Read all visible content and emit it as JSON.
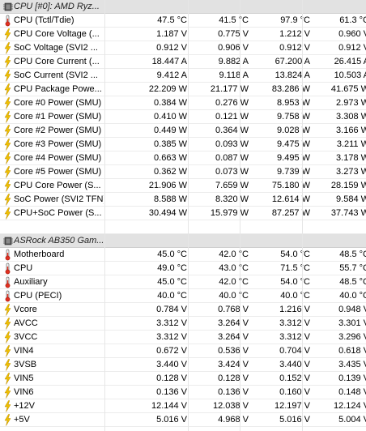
{
  "groups": [
    {
      "title": "CPU [#0]: AMD Ryz...",
      "icon": "chip-icon",
      "rows": [
        {
          "label": "CPU (Tctl/Tdie)",
          "icon": "thermometer-icon",
          "values": [
            "47.5 °C",
            "41.5 °C",
            "97.9 °C",
            "61.3 °C"
          ]
        },
        {
          "label": "CPU Core Voltage (...",
          "icon": "bolt-icon",
          "values": [
            "1.187 V",
            "0.775 V",
            "1.212 V",
            "0.960 V"
          ]
        },
        {
          "label": "SoC Voltage (SVI2 ...",
          "icon": "bolt-icon",
          "values": [
            "0.912 V",
            "0.906 V",
            "0.912 V",
            "0.912 V"
          ]
        },
        {
          "label": "CPU Core Current (...",
          "icon": "bolt-icon",
          "values": [
            "18.447 A",
            "9.882 A",
            "67.200 A",
            "26.415 A"
          ]
        },
        {
          "label": "SoC Current (SVI2 ...",
          "icon": "bolt-icon",
          "values": [
            "9.412 A",
            "9.118 A",
            "13.824 A",
            "10.503 A"
          ]
        },
        {
          "label": "CPU Package Powe...",
          "icon": "bolt-icon",
          "values": [
            "22.209 W",
            "21.177 W",
            "83.286 W",
            "41.675 W"
          ]
        },
        {
          "label": "Core #0 Power (SMU)",
          "icon": "bolt-icon",
          "values": [
            "0.384 W",
            "0.276 W",
            "8.953 W",
            "2.973 W"
          ]
        },
        {
          "label": "Core #1 Power (SMU)",
          "icon": "bolt-icon",
          "values": [
            "0.410 W",
            "0.121 W",
            "9.758 W",
            "3.308 W"
          ]
        },
        {
          "label": "Core #2 Power (SMU)",
          "icon": "bolt-icon",
          "values": [
            "0.449 W",
            "0.364 W",
            "9.028 W",
            "3.166 W"
          ]
        },
        {
          "label": "Core #3 Power (SMU)",
          "icon": "bolt-icon",
          "values": [
            "0.385 W",
            "0.093 W",
            "9.475 W",
            "3.211 W"
          ]
        },
        {
          "label": "Core #4 Power (SMU)",
          "icon": "bolt-icon",
          "values": [
            "0.663 W",
            "0.087 W",
            "9.495 W",
            "3.178 W"
          ]
        },
        {
          "label": "Core #5 Power (SMU)",
          "icon": "bolt-icon",
          "values": [
            "0.362 W",
            "0.073 W",
            "9.739 W",
            "3.273 W"
          ]
        },
        {
          "label": "CPU Core Power (S...",
          "icon": "bolt-icon",
          "values": [
            "21.906 W",
            "7.659 W",
            "75.180 W",
            "28.159 W"
          ]
        },
        {
          "label": "SoC Power (SVI2 TFN)",
          "icon": "bolt-icon",
          "values": [
            "8.588 W",
            "8.320 W",
            "12.614 W",
            "9.584 W"
          ]
        },
        {
          "label": "CPU+SoC Power (S...",
          "icon": "bolt-icon",
          "values": [
            "30.494 W",
            "15.979 W",
            "87.257 W",
            "37.743 W"
          ]
        }
      ]
    },
    {
      "title": "ASRock AB350 Gam...",
      "icon": "chip-icon",
      "rows": [
        {
          "label": "Motherboard",
          "icon": "thermometer-icon",
          "values": [
            "45.0 °C",
            "42.0 °C",
            "54.0 °C",
            "48.5 °C"
          ]
        },
        {
          "label": "CPU",
          "icon": "thermometer-icon",
          "values": [
            "49.0 °C",
            "43.0 °C",
            "71.5 °C",
            "55.7 °C"
          ]
        },
        {
          "label": "Auxiliary",
          "icon": "thermometer-icon",
          "values": [
            "45.0 °C",
            "42.0 °C",
            "54.0 °C",
            "48.5 °C"
          ]
        },
        {
          "label": "CPU (PECI)",
          "icon": "thermometer-icon",
          "values": [
            "40.0 °C",
            "40.0 °C",
            "40.0 °C",
            "40.0 °C"
          ]
        },
        {
          "label": "Vcore",
          "icon": "bolt-icon",
          "values": [
            "0.784 V",
            "0.768 V",
            "1.216 V",
            "0.948 V"
          ]
        },
        {
          "label": "AVCC",
          "icon": "bolt-icon",
          "values": [
            "3.312 V",
            "3.264 V",
            "3.312 V",
            "3.301 V"
          ]
        },
        {
          "label": "3VCC",
          "icon": "bolt-icon",
          "values": [
            "3.312 V",
            "3.264 V",
            "3.312 V",
            "3.296 V"
          ]
        },
        {
          "label": "VIN4",
          "icon": "bolt-icon",
          "values": [
            "0.672 V",
            "0.536 V",
            "0.704 V",
            "0.618 V"
          ]
        },
        {
          "label": "3VSB",
          "icon": "bolt-icon",
          "values": [
            "3.440 V",
            "3.424 V",
            "3.440 V",
            "3.435 V"
          ]
        },
        {
          "label": "VIN5",
          "icon": "bolt-icon",
          "values": [
            "0.128 V",
            "0.128 V",
            "0.152 V",
            "0.139 V"
          ]
        },
        {
          "label": "VIN6",
          "icon": "bolt-icon",
          "values": [
            "0.136 V",
            "0.136 V",
            "0.160 V",
            "0.148 V"
          ]
        },
        {
          "label": "+12V",
          "icon": "bolt-icon",
          "values": [
            "12.144 V",
            "12.038 V",
            "12.197 V",
            "12.124 V"
          ]
        },
        {
          "label": "+5V",
          "icon": "bolt-icon",
          "values": [
            "5.016 V",
            "4.968 V",
            "5.016 V",
            "5.004 V"
          ]
        }
      ]
    }
  ],
  "colors": {
    "group_bg": "#e2e2e2",
    "bolt": "#f0c000",
    "thermo_bulb": "#e03020"
  }
}
